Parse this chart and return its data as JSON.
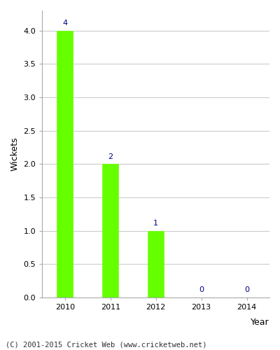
{
  "years": [
    "2010",
    "2011",
    "2012",
    "2013",
    "2014"
  ],
  "values": [
    4,
    2,
    1,
    0,
    0
  ],
  "bar_color": "#66ff00",
  "bar_edgecolor": "#66ff00",
  "xlabel": "Year",
  "ylabel": "Wickets",
  "ylim": [
    0,
    4.3
  ],
  "yticks": [
    0.0,
    0.5,
    1.0,
    1.5,
    2.0,
    2.5,
    3.0,
    3.5,
    4.0
  ],
  "label_color": "#000080",
  "label_fontsize": 8,
  "axis_label_fontsize": 9,
  "tick_fontsize": 8,
  "footer_text": "(C) 2001-2015 Cricket Web (www.cricketweb.net)",
  "footer_fontsize": 7.5,
  "background_color": "#ffffff",
  "grid_color": "#cccccc",
  "bar_width": 0.35
}
